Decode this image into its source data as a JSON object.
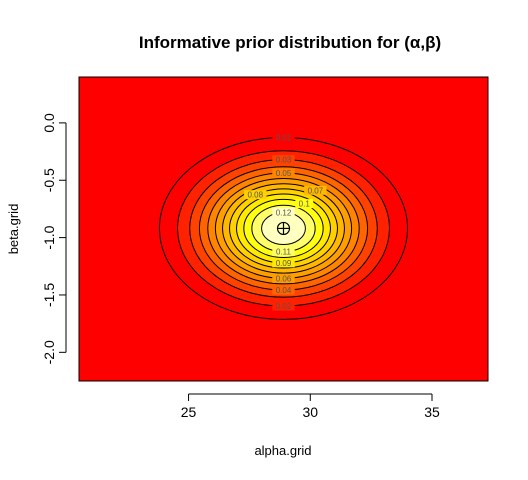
{
  "chart_data": {
    "type": "heatmap",
    "title": "Informative prior distribution for (α,β)",
    "xlabel": "alpha.grid",
    "ylabel": "beta.grid",
    "xlim": [
      20.5,
      37.3
    ],
    "ylim": [
      -2.25,
      0.4
    ],
    "x_ticks": [
      25,
      30,
      35
    ],
    "y_ticks": [
      0.0,
      -0.5,
      -1.0,
      -1.5,
      -2.0
    ],
    "y_tick_labels": [
      "0.0",
      "-0.5",
      "-1.0",
      "-1.5",
      "-2.0"
    ],
    "center": {
      "x": 28.9,
      "y": -0.92
    },
    "sd": {
      "x": 2.25,
      "y": 0.35
    },
    "peak_density": 0.13,
    "contour_levels": [
      0.01,
      0.02,
      0.03,
      0.04,
      0.05,
      0.06,
      0.07,
      0.08,
      0.09,
      0.1,
      0.11,
      0.12
    ],
    "contour_labels": [
      {
        "text": "0.01",
        "level": 0.01,
        "side": "top"
      },
      {
        "text": "0.02",
        "level": 0.02,
        "side": "bottom"
      },
      {
        "text": "0.03",
        "level": 0.03,
        "side": "top"
      },
      {
        "text": "0.04",
        "level": 0.04,
        "side": "bottom"
      },
      {
        "text": "0.05",
        "level": 0.05,
        "side": "top"
      },
      {
        "text": "0.06",
        "level": 0.06,
        "side": "bottom"
      },
      {
        "text": "0.07",
        "level": 0.07,
        "side": "top-right"
      },
      {
        "text": "0.08",
        "level": 0.08,
        "side": "top-left"
      },
      {
        "text": "0.09",
        "level": 0.09,
        "side": "bottom"
      },
      {
        "text": "0.1",
        "level": 0.1,
        "side": "top-right"
      },
      {
        "text": "0.11",
        "level": 0.11,
        "side": "bottom"
      },
      {
        "text": "0.12",
        "level": 0.12,
        "side": "top"
      }
    ],
    "colors": {
      "background": "#FF0000",
      "low": "#FF0000",
      "mid": "#FF8000",
      "high": "#FFFF00",
      "peak": "#FFFFC0",
      "contour": "#000000"
    },
    "grid": false,
    "marker": "circle-plus at center"
  }
}
